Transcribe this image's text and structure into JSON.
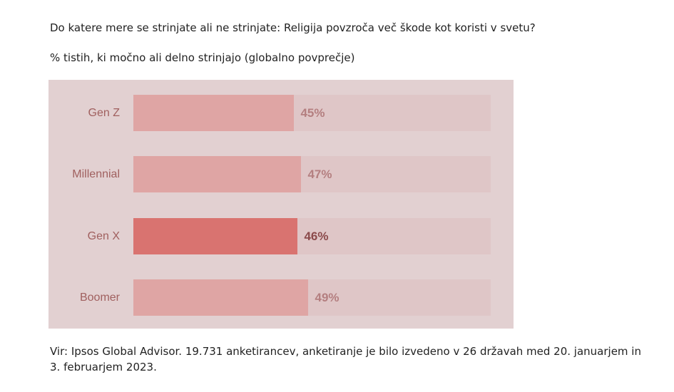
{
  "title": "Do katere mere se strinjate ali ne strinjate: Religija povzroča več škode kot koristi v svetu?",
  "subtitle": "% tistih, ki močno ali delno strinjajo (globalno povprečje)",
  "source": "Vir: Ipsos Global Advisor. 19.731 anketirancev, anketiranje je bilo izvedeno v 26 državah med 20. januarjem in 3. februarjem 2023.",
  "colors": {
    "panel": "#e2d0d1",
    "track": "#dfc6c7",
    "bar": "#dfa5a4",
    "highlight": "#d97370"
  },
  "chart_data": {
    "type": "bar",
    "orientation": "horizontal",
    "title": "Do katere mere se strinjate ali ne strinjate: Religija povzroča več škode kot koristi v svetu?",
    "subtitle": "% tistih, ki močno ali delno strinjajo (globalno povprečje)",
    "categories": [
      "Gen Z",
      "Millennial",
      "Gen X",
      "Boomer"
    ],
    "values": [
      45,
      47,
      46,
      49
    ],
    "labels": [
      "45%",
      "47%",
      "46%",
      "49%"
    ],
    "highlighted": "Gen X",
    "xlim": [
      0,
      100
    ],
    "grid": false
  }
}
